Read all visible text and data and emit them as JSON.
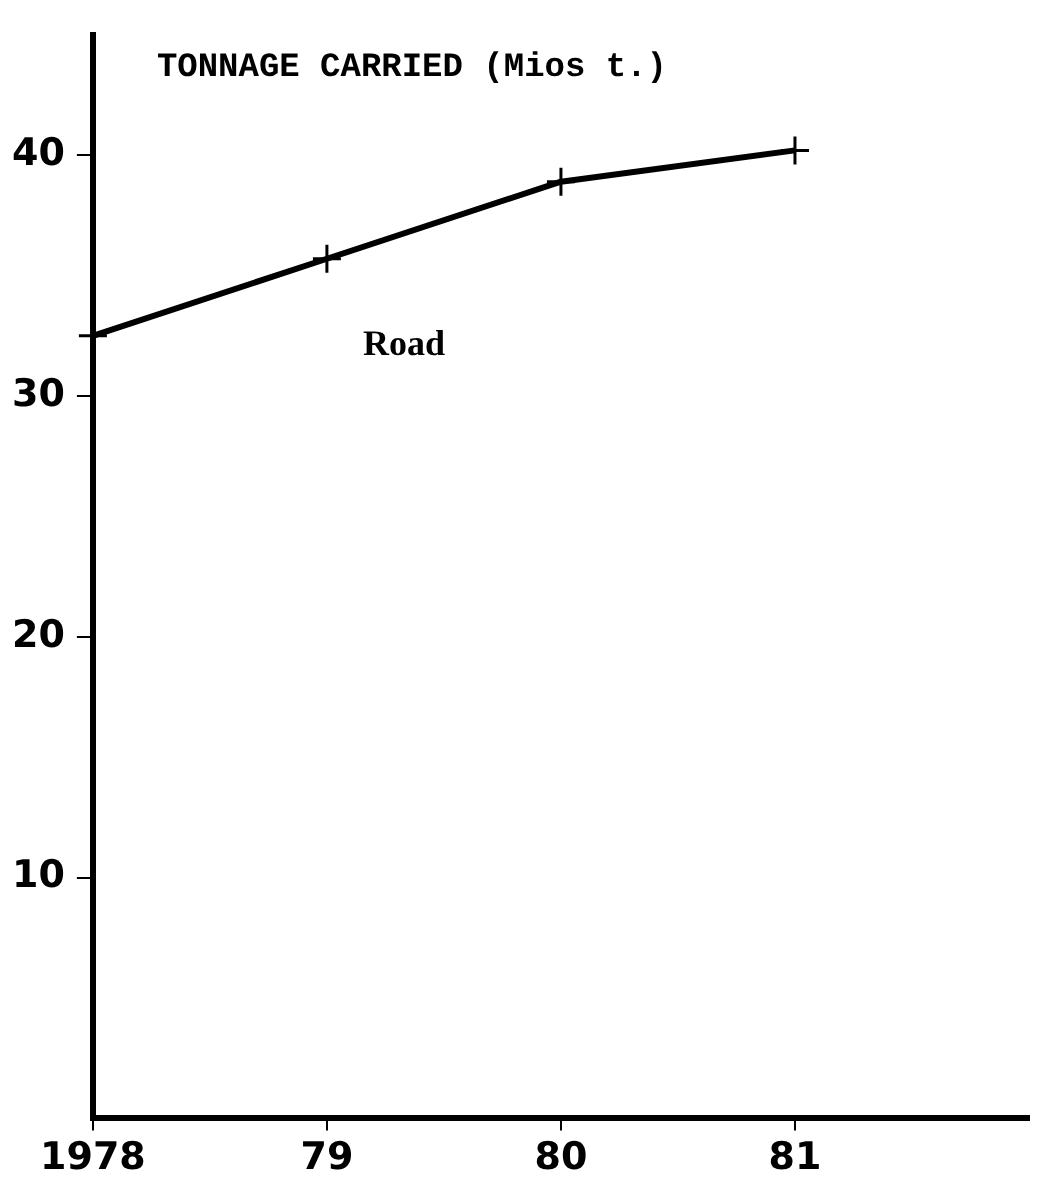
{
  "chart_data": {
    "type": "line",
    "title": "TONNAGE CARRIED (Mios t.)",
    "x": [
      1978,
      1979,
      1980,
      1981
    ],
    "series": [
      {
        "name": "Road",
        "color": "#000000",
        "values": [
          32.5,
          35.7,
          38.9,
          40.2
        ]
      }
    ],
    "xlim": [
      1978,
      1982
    ],
    "xticks": [
      1978,
      {
        "value": 1979,
        "label": "79"
      },
      {
        "value": 1980,
        "label": "80"
      },
      {
        "value": 1981,
        "label": "81"
      }
    ],
    "ylim": [
      0,
      45
    ],
    "yticks": [
      10,
      20,
      30,
      40
    ],
    "grid": false,
    "legend": false,
    "marker": "cross",
    "line_style": "solid"
  }
}
